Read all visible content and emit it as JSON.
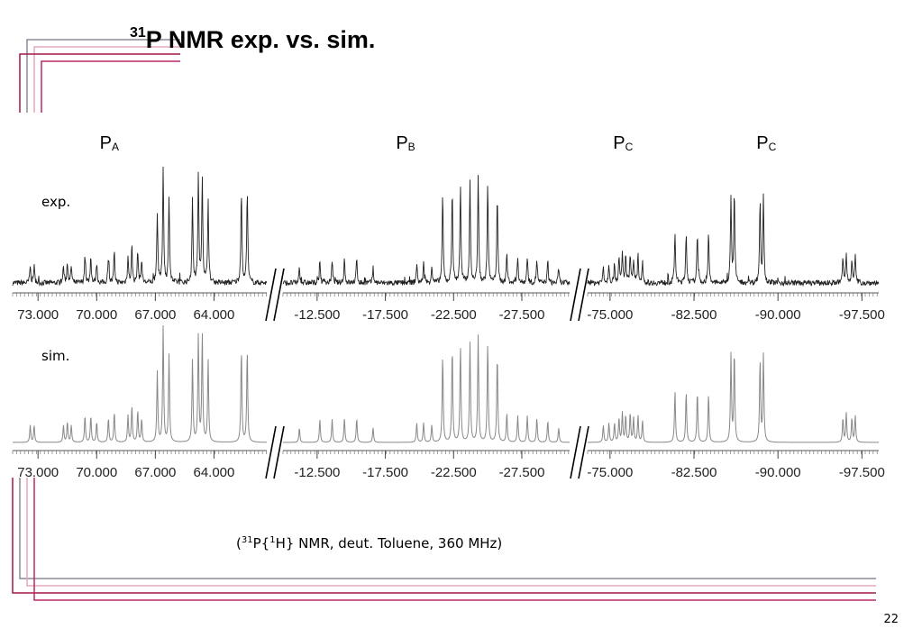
{
  "page": {
    "title_sup": "31",
    "title_rest": "P NMR exp. vs. sim.",
    "page_number": "22",
    "conditions": {
      "open": "(",
      "sup1": "31",
      "mid": "P{",
      "sup2": "1",
      "rest": "H} NMR, deut. Toluene, 360 MHz)"
    },
    "deco_colors": [
      "#8a8a9a",
      "#e6a8bc",
      "#a01848",
      "#b82868"
    ]
  },
  "chart_data": {
    "type": "line",
    "title": "",
    "xlabel": "",
    "ylabel": "",
    "x_axis_reversed": true,
    "axis_breaks": [
      "between 62 and -10 ppm",
      "between -31 and -73 ppm"
    ],
    "segments": [
      {
        "id": "PA",
        "ppm_range": [
          74.3,
          61.3
        ],
        "tick_labels": [
          "73.000",
          "70.000",
          "67.000",
          "64.000"
        ],
        "tick_values": [
          73,
          70,
          67,
          64
        ]
      },
      {
        "id": "PB",
        "ppm_range": [
          -10.0,
          -31.0
        ],
        "tick_labels": [
          "-12.500",
          "-17.500",
          "-22.500",
          "-27.500"
        ],
        "tick_values": [
          -12.5,
          -17.5,
          -22.5,
          -27.5
        ]
      },
      {
        "id": "PC",
        "ppm_range": [
          -73.0,
          -99.0
        ],
        "tick_labels": [
          "-75.000",
          "-82.500",
          "-90.000",
          "-97.500"
        ],
        "tick_values": [
          -75,
          -82.5,
          -90,
          -97.5
        ]
      }
    ],
    "group_labels": [
      {
        "letter": "P",
        "sub": "A",
        "ppm": 69.2
      },
      {
        "letter": "P",
        "sub": "B",
        "ppm": -19.2
      },
      {
        "letter": "P",
        "sub": "C",
        "ppm": -76.4
      },
      {
        "letter": "P",
        "sub": "C",
        "ppm": -89.2
      }
    ],
    "series": [
      {
        "name": "exp.",
        "style": "noisy",
        "color": "#222222"
      },
      {
        "name": "sim.",
        "style": "clean",
        "color": "#888888"
      }
    ],
    "peaks": [
      {
        "ppm": 73.4,
        "h": 0.14
      },
      {
        "ppm": 73.2,
        "h": 0.14
      },
      {
        "ppm": 71.7,
        "h": 0.14
      },
      {
        "ppm": 71.5,
        "h": 0.17
      },
      {
        "ppm": 71.3,
        "h": 0.14
      },
      {
        "ppm": 70.6,
        "h": 0.22
      },
      {
        "ppm": 70.3,
        "h": 0.22
      },
      {
        "ppm": 70.0,
        "h": 0.17
      },
      {
        "ppm": 69.4,
        "h": 0.2
      },
      {
        "ppm": 69.1,
        "h": 0.25
      },
      {
        "ppm": 68.4,
        "h": 0.22
      },
      {
        "ppm": 68.2,
        "h": 0.3
      },
      {
        "ppm": 67.9,
        "h": 0.26
      },
      {
        "ppm": 67.7,
        "h": 0.19
      },
      {
        "ppm": 66.9,
        "h": 0.58
      },
      {
        "ppm": 66.6,
        "h": 0.95
      },
      {
        "ppm": 66.3,
        "h": 0.72
      },
      {
        "ppm": 65.1,
        "h": 0.68
      },
      {
        "ppm": 64.8,
        "h": 0.88
      },
      {
        "ppm": 64.6,
        "h": 0.88
      },
      {
        "ppm": 64.3,
        "h": 0.68
      },
      {
        "ppm": 62.6,
        "h": 0.77
      },
      {
        "ppm": 62.3,
        "h": 0.77
      },
      {
        "ppm": -11.2,
        "h": 0.12
      },
      {
        "ppm": -12.7,
        "h": 0.19
      },
      {
        "ppm": -13.6,
        "h": 0.19
      },
      {
        "ppm": -14.5,
        "h": 0.2
      },
      {
        "ppm": -15.4,
        "h": 0.2
      },
      {
        "ppm": -16.6,
        "h": 0.12
      },
      {
        "ppm": -19.8,
        "h": 0.16
      },
      {
        "ppm": -20.3,
        "h": 0.16
      },
      {
        "ppm": -20.9,
        "h": 0.14
      },
      {
        "ppm": -21.7,
        "h": 0.72
      },
      {
        "ppm": -22.4,
        "h": 0.78
      },
      {
        "ppm": -23.0,
        "h": 0.8
      },
      {
        "ppm": -23.7,
        "h": 0.82
      },
      {
        "ppm": -24.3,
        "h": 0.88
      },
      {
        "ppm": -25.0,
        "h": 0.82
      },
      {
        "ppm": -25.7,
        "h": 0.72
      },
      {
        "ppm": -26.4,
        "h": 0.24
      },
      {
        "ppm": -27.2,
        "h": 0.22
      },
      {
        "ppm": -27.9,
        "h": 0.22
      },
      {
        "ppm": -28.6,
        "h": 0.2
      },
      {
        "ppm": -29.4,
        "h": 0.18
      },
      {
        "ppm": -30.2,
        "h": 0.12
      },
      {
        "ppm": -74.4,
        "h": 0.14
      },
      {
        "ppm": -74.9,
        "h": 0.16
      },
      {
        "ppm": -75.4,
        "h": 0.16
      },
      {
        "ppm": -75.8,
        "h": 0.2
      },
      {
        "ppm": -76.1,
        "h": 0.24
      },
      {
        "ppm": -76.4,
        "h": 0.22
      },
      {
        "ppm": -76.8,
        "h": 0.24
      },
      {
        "ppm": -77.1,
        "h": 0.2
      },
      {
        "ppm": -77.5,
        "h": 0.22
      },
      {
        "ppm": -77.9,
        "h": 0.18
      },
      {
        "ppm": -80.8,
        "h": 0.42
      },
      {
        "ppm": -81.8,
        "h": 0.42
      },
      {
        "ppm": -82.8,
        "h": 0.42
      },
      {
        "ppm": -83.8,
        "h": 0.4
      },
      {
        "ppm": -85.8,
        "h": 0.72
      },
      {
        "ppm": -86.1,
        "h": 0.75
      },
      {
        "ppm": -88.4,
        "h": 0.68
      },
      {
        "ppm": -88.7,
        "h": 0.72
      },
      {
        "ppm": -95.8,
        "h": 0.2
      },
      {
        "ppm": -96.1,
        "h": 0.24
      },
      {
        "ppm": -96.6,
        "h": 0.2
      },
      {
        "ppm": -96.9,
        "h": 0.22
      }
    ]
  }
}
